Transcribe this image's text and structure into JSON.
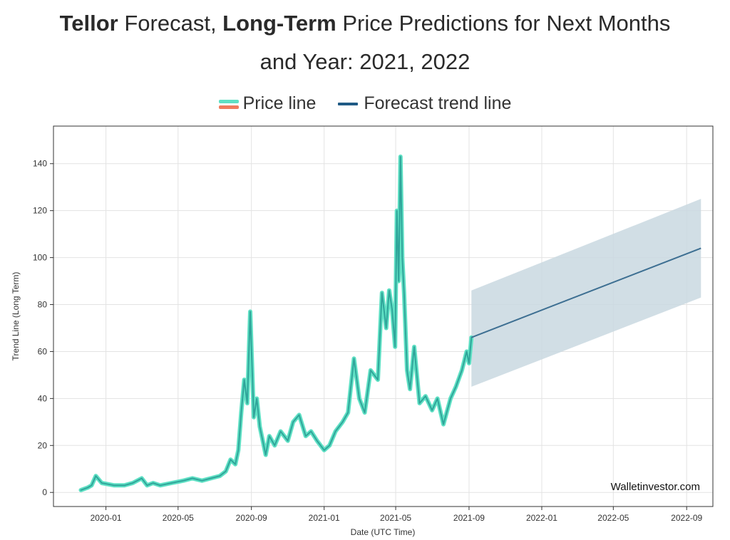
{
  "title": {
    "bold1": "Tellor",
    "part1": " Forecast, ",
    "bold2": "Long-Term",
    "part2": " Price Predictions for Next Months",
    "line2": "and Year: 2021, 2022"
  },
  "legend": {
    "price": "Price line",
    "trend": "Forecast trend line"
  },
  "watermark": "Walletinvestor.com",
  "colors": {
    "price_line": "#2fa59a",
    "price_glow": "#5fe0c4",
    "price_swatch_bottom": "#f07b5e",
    "trend": "#3d6f92",
    "band": "#c9d8e1"
  },
  "chart_data": {
    "type": "line",
    "xlabel": "Date (UTC Time)",
    "ylabel": "Trend Line (Long Term)",
    "xlim": [
      "2019-10-05",
      "2022-10-15"
    ],
    "ylim": [
      -6,
      156
    ],
    "grid": true,
    "legend_position": "top",
    "x_ticks": [
      "2020-01",
      "2020-05",
      "2020-09",
      "2021-01",
      "2021-05",
      "2021-09",
      "2022-01",
      "2022-05",
      "2022-09"
    ],
    "y_ticks": [
      0,
      20,
      40,
      60,
      80,
      100,
      120,
      140
    ],
    "series": [
      {
        "name": "Price line",
        "x": [
          "2019-11-20",
          "2019-12-01",
          "2019-12-08",
          "2019-12-15",
          "2019-12-25",
          "2020-01-15",
          "2020-02-01",
          "2020-02-15",
          "2020-03-01",
          "2020-03-10",
          "2020-03-20",
          "2020-04-01",
          "2020-04-20",
          "2020-05-10",
          "2020-05-25",
          "2020-06-10",
          "2020-06-25",
          "2020-07-10",
          "2020-07-20",
          "2020-07-28",
          "2020-08-05",
          "2020-08-10",
          "2020-08-15",
          "2020-08-20",
          "2020-08-25",
          "2020-08-30",
          "2020-09-05",
          "2020-09-10",
          "2020-09-15",
          "2020-09-20",
          "2020-09-25",
          "2020-10-01",
          "2020-10-10",
          "2020-10-20",
          "2020-11-01",
          "2020-11-10",
          "2020-11-20",
          "2020-12-01",
          "2020-12-10",
          "2020-12-20",
          "2021-01-01",
          "2021-01-10",
          "2021-01-20",
          "2021-02-01",
          "2021-02-10",
          "2021-02-20",
          "2021-03-01",
          "2021-03-10",
          "2021-03-20",
          "2021-04-01",
          "2021-04-08",
          "2021-04-15",
          "2021-04-20",
          "2021-04-25",
          "2021-04-30",
          "2021-05-03",
          "2021-05-06",
          "2021-05-09",
          "2021-05-12",
          "2021-05-15",
          "2021-05-20",
          "2021-05-25",
          "2021-06-01",
          "2021-06-10",
          "2021-06-20",
          "2021-07-01",
          "2021-07-10",
          "2021-07-20",
          "2021-08-01",
          "2021-08-10",
          "2021-08-20",
          "2021-08-28",
          "2021-09-01",
          "2021-09-05"
        ],
        "values": [
          1,
          2,
          3,
          7,
          4,
          3,
          3,
          4,
          6,
          3,
          4,
          3,
          4,
          5,
          6,
          5,
          6,
          7,
          9,
          14,
          12,
          18,
          34,
          48,
          38,
          77,
          32,
          40,
          28,
          22,
          16,
          24,
          20,
          26,
          22,
          30,
          33,
          24,
          26,
          22,
          18,
          20,
          26,
          30,
          34,
          57,
          40,
          34,
          52,
          48,
          85,
          70,
          86,
          78,
          62,
          120,
          90,
          143,
          100,
          85,
          52,
          44,
          62,
          38,
          41,
          35,
          40,
          29,
          40,
          45,
          52,
          60,
          55,
          66
        ]
      },
      {
        "name": "Forecast trend line",
        "x": [
          "2021-09-05",
          "2022-09-25"
        ],
        "values": [
          66,
          104
        ],
        "band_lower": [
          45,
          83
        ],
        "band_upper": [
          86,
          125
        ]
      }
    ]
  }
}
